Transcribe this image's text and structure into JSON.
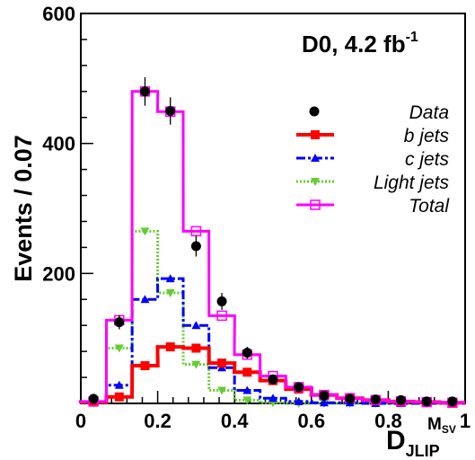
{
  "chart_data": {
    "type": "histogram",
    "experiment_label": "D0, 4.2 fb",
    "experiment_label_sup": "-1",
    "ylabel": "Events / 0.07",
    "xlabel": {
      "main": "D",
      "sub": "JLIP",
      "sup_main": "M",
      "sup_sub": "SV"
    },
    "xlim": [
      0,
      1
    ],
    "ylim": [
      0,
      600
    ],
    "x_ticks": [
      {
        "value": 0,
        "label": "0"
      },
      {
        "value": 0.2,
        "label": "0.2"
      },
      {
        "value": 0.4,
        "label": "0.4"
      },
      {
        "value": 0.6,
        "label": "0.6"
      },
      {
        "value": 0.8,
        "label": "0.8"
      },
      {
        "value": 1,
        "label": "1"
      }
    ],
    "y_ticks": [
      {
        "value": 200,
        "label": "200"
      },
      {
        "value": 400,
        "label": "400"
      },
      {
        "value": 600,
        "label": "600"
      }
    ],
    "bin_width": 0.0667,
    "bin_centers": [
      0.033,
      0.1,
      0.167,
      0.233,
      0.3,
      0.367,
      0.433,
      0.5,
      0.567,
      0.633,
      0.7,
      0.767,
      0.833,
      0.9,
      0.967
    ],
    "legend": {
      "position": "right",
      "entries": [
        {
          "key": "data",
          "label": "Data"
        },
        {
          "key": "b",
          "label": "b   jets"
        },
        {
          "key": "c",
          "label": "c   jets"
        },
        {
          "key": "light",
          "label": "Light jets"
        },
        {
          "key": "total",
          "label": "Total"
        }
      ]
    },
    "series": [
      {
        "key": "data",
        "style": "points_with_errors",
        "color": "#000000",
        "values": [
          7,
          125,
          480,
          450,
          242,
          157,
          78,
          37,
          25,
          12,
          7,
          6,
          5,
          3,
          3
        ],
        "errors": [
          3,
          11,
          22,
          21,
          16,
          13,
          9,
          6,
          5,
          4,
          3,
          2,
          2,
          2,
          2
        ]
      },
      {
        "key": "b",
        "style": "step_squares",
        "color": "#ff0000",
        "values": [
          2,
          10,
          58,
          87,
          85,
          62,
          48,
          35,
          22,
          13,
          8,
          5,
          3,
          2,
          1
        ]
      },
      {
        "key": "c",
        "style": "dashdot_triangles",
        "color": "#0000ff",
        "values": [
          1,
          28,
          160,
          192,
          120,
          55,
          20,
          8,
          3,
          1,
          1,
          0,
          0,
          0,
          0
        ]
      },
      {
        "key": "light",
        "style": "dotted_triangles_down",
        "color": "#66cc33",
        "values": [
          0,
          85,
          265,
          170,
          60,
          20,
          5,
          1,
          0,
          0,
          0,
          0,
          0,
          0,
          0
        ]
      },
      {
        "key": "total",
        "style": "step_open_squares",
        "color": "#ff00ff",
        "values": [
          3,
          128,
          480,
          449,
          265,
          135,
          75,
          42,
          25,
          13,
          8,
          5,
          3,
          2,
          1
        ]
      }
    ]
  }
}
